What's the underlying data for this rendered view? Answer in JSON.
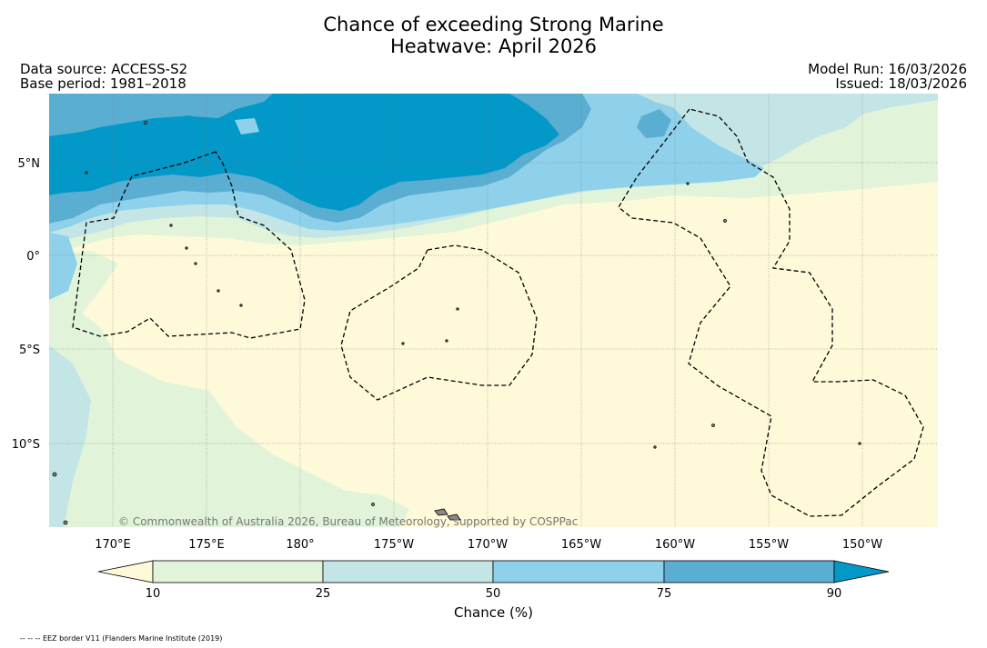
{
  "header": {
    "title_line1": "Chance of exceeding Strong Marine",
    "title_line2": "Heatwave: April 2026",
    "data_source": "Data source: ACCESS-S2",
    "base_period": "Base period: 1981–2018",
    "model_run": "Model Run: 16/03/2026",
    "issued": "Issued: 18/03/2026"
  },
  "map": {
    "latitude_labels": [
      "5°N",
      "0°",
      "5°S",
      "10°S"
    ],
    "longitude_labels": [
      "170°E",
      "175°E",
      "180°",
      "175°W",
      "170°W",
      "165°W",
      "160°W",
      "155°W",
      "150°W"
    ],
    "copyright": "© Commonwealth of Australia 2026, Bureau of Meteorology, supported by COSPPac",
    "colors": {
      "below10": "#fef9d8",
      "c10_25": "#e1f4da",
      "c25_50": "#c4e5e6",
      "c50_75": "#8fd1ea",
      "c75_90": "#5aaed2",
      "above90": "#0298c8",
      "land": "#888888"
    }
  },
  "colorbar": {
    "ticks": [
      "10",
      "25",
      "50",
      "75",
      "90"
    ],
    "title": "Chance (%)",
    "colors": [
      "#fef9d8",
      "#e1f4da",
      "#c4e5e6",
      "#8fd1ea",
      "#5aaed2",
      "#0298c8"
    ]
  },
  "footnote": "-- -- -- EEZ border V11 (Flanders Marine Institute (2019)"
}
